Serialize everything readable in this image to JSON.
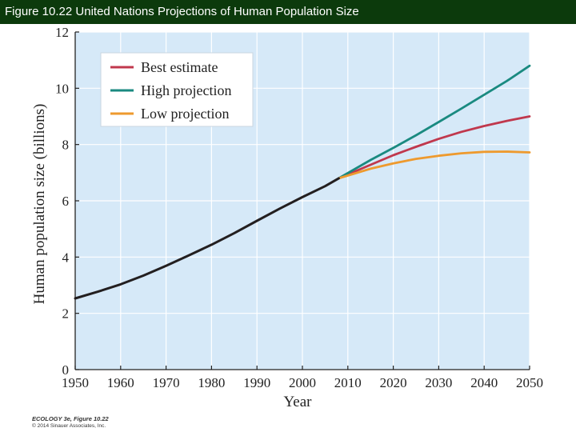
{
  "header": {
    "title": "Figure 10.22  United Nations Projections of Human Population Size"
  },
  "credit": {
    "line1": "ECOLOGY 3e, Figure 10.22",
    "line2": "© 2014 Sinauer Associates, Inc."
  },
  "colors": {
    "title_bar": "#0c3a0c",
    "plot_bg": "#d6e9f8",
    "gridline": "#ffffff",
    "historical": "#231f20",
    "best": "#c0384d",
    "high": "#1a8a80",
    "low": "#ee9a2e"
  },
  "chart_data": {
    "type": "line",
    "title": "",
    "xlabel": "Year",
    "ylabel": "Human population size (billions)",
    "xlim": [
      1950,
      2050
    ],
    "ylim": [
      0,
      12
    ],
    "xticks": [
      "1950",
      "1960",
      "1970",
      "1980",
      "1990",
      "2000",
      "2010",
      "2020",
      "2030",
      "2040",
      "2050"
    ],
    "yticks": [
      "0",
      "2",
      "4",
      "6",
      "8",
      "10",
      "12"
    ],
    "grid": true,
    "legend_position": "top-left",
    "series": [
      {
        "name": "",
        "color_key": "historical",
        "points": [
          [
            1950,
            2.53
          ],
          [
            1955,
            2.77
          ],
          [
            1960,
            3.03
          ],
          [
            1965,
            3.34
          ],
          [
            1970,
            3.69
          ],
          [
            1975,
            4.06
          ],
          [
            1980,
            4.44
          ],
          [
            1985,
            4.85
          ],
          [
            1990,
            5.29
          ],
          [
            1995,
            5.72
          ],
          [
            2000,
            6.13
          ],
          [
            2005,
            6.52
          ],
          [
            2008,
            6.8
          ]
        ]
      },
      {
        "name": "Best estimate",
        "color_key": "best",
        "points": [
          [
            2008,
            6.8
          ],
          [
            2015,
            7.28
          ],
          [
            2020,
            7.62
          ],
          [
            2025,
            7.92
          ],
          [
            2030,
            8.2
          ],
          [
            2035,
            8.45
          ],
          [
            2040,
            8.66
          ],
          [
            2045,
            8.84
          ],
          [
            2050,
            9.0
          ]
        ]
      },
      {
        "name": "High projection",
        "color_key": "high",
        "points": [
          [
            2008,
            6.8
          ],
          [
            2015,
            7.45
          ],
          [
            2020,
            7.88
          ],
          [
            2025,
            8.33
          ],
          [
            2030,
            8.8
          ],
          [
            2035,
            9.28
          ],
          [
            2040,
            9.77
          ],
          [
            2045,
            10.26
          ],
          [
            2050,
            10.8
          ]
        ]
      },
      {
        "name": "Low projection",
        "color_key": "low",
        "points": [
          [
            2008,
            6.8
          ],
          [
            2015,
            7.14
          ],
          [
            2020,
            7.33
          ],
          [
            2025,
            7.49
          ],
          [
            2030,
            7.6
          ],
          [
            2035,
            7.69
          ],
          [
            2040,
            7.74
          ],
          [
            2045,
            7.75
          ],
          [
            2050,
            7.72
          ]
        ]
      }
    ]
  }
}
